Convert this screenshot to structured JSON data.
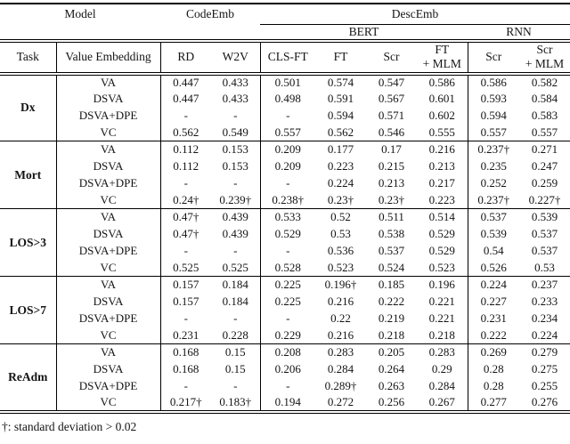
{
  "header": {
    "model": "Model",
    "codeemb": "CodeEmb",
    "descemb": "DescEmb",
    "bert": "BERT",
    "rnn": "RNN",
    "task": "Task",
    "value_embedding": "Value Embedding",
    "cols": {
      "rd": "RD",
      "w2v": "W2V",
      "cls_ft": "CLS-FT",
      "ft": "FT",
      "scr": "Scr",
      "ft_mlm": [
        "FT",
        "+ MLM"
      ],
      "scr_rnn": "Scr",
      "scr_mlm": [
        "Scr",
        "+ MLM"
      ]
    }
  },
  "groups": [
    {
      "task": "Dx",
      "rows": [
        {
          "label": "VA",
          "values": [
            "0.447",
            "0.433",
            "0.501",
            "0.574",
            "0.547",
            "0.586",
            "0.586",
            "0.582"
          ]
        },
        {
          "label": "DSVA",
          "values": [
            "0.447",
            "0.433",
            "0.498",
            "0.591",
            "0.567",
            "0.601",
            "0.593",
            "0.584"
          ]
        },
        {
          "label": "DSVA+DPE",
          "values": [
            "-",
            "-",
            "-",
            "0.594",
            "0.571",
            "0.602",
            "0.594",
            "0.583"
          ]
        },
        {
          "label": "VC",
          "values": [
            "0.562",
            "0.549",
            "0.557",
            "0.562",
            "0.546",
            "0.555",
            "0.557",
            "0.557"
          ]
        }
      ]
    },
    {
      "task": "Mort",
      "rows": [
        {
          "label": "VA",
          "values": [
            "0.112",
            "0.153",
            "0.209",
            "0.177",
            "0.17",
            "0.216",
            "0.237†",
            "0.271"
          ]
        },
        {
          "label": "DSVA",
          "values": [
            "0.112",
            "0.153",
            "0.209",
            "0.223",
            "0.215",
            "0.213",
            "0.235",
            "0.247"
          ]
        },
        {
          "label": "DSVA+DPE",
          "values": [
            "-",
            "-",
            "-",
            "0.224",
            "0.213",
            "0.217",
            "0.252",
            "0.259"
          ]
        },
        {
          "label": "VC",
          "values": [
            "0.24†",
            "0.239†",
            "0.238†",
            "0.23†",
            "0.23†",
            "0.223",
            "0.237†",
            "0.227†"
          ]
        }
      ]
    },
    {
      "task": "LOS>3",
      "rows": [
        {
          "label": "VA",
          "values": [
            "0.47†",
            "0.439",
            "0.533",
            "0.52",
            "0.511",
            "0.514",
            "0.537",
            "0.539"
          ]
        },
        {
          "label": "DSVA",
          "values": [
            "0.47†",
            "0.439",
            "0.529",
            "0.53",
            "0.538",
            "0.529",
            "0.539",
            "0.537"
          ]
        },
        {
          "label": "DSVA+DPE",
          "values": [
            "-",
            "-",
            "-",
            "0.536",
            "0.537",
            "0.529",
            "0.54",
            "0.537"
          ]
        },
        {
          "label": "VC",
          "values": [
            "0.525",
            "0.525",
            "0.528",
            "0.523",
            "0.524",
            "0.523",
            "0.526",
            "0.53"
          ]
        }
      ]
    },
    {
      "task": "LOS>7",
      "rows": [
        {
          "label": "VA",
          "values": [
            "0.157",
            "0.184",
            "0.225",
            "0.196†",
            "0.185",
            "0.196",
            "0.224",
            "0.237"
          ]
        },
        {
          "label": "DSVA",
          "values": [
            "0.157",
            "0.184",
            "0.225",
            "0.216",
            "0.222",
            "0.221",
            "0.227",
            "0.233"
          ]
        },
        {
          "label": "DSVA+DPE",
          "values": [
            "-",
            "-",
            "-",
            "0.22",
            "0.219",
            "0.221",
            "0.231",
            "0.234"
          ]
        },
        {
          "label": "VC",
          "values": [
            "0.231",
            "0.228",
            "0.229",
            "0.216",
            "0.218",
            "0.218",
            "0.222",
            "0.224"
          ]
        }
      ]
    },
    {
      "task": "ReAdm",
      "rows": [
        {
          "label": "VA",
          "values": [
            "0.168",
            "0.15",
            "0.208",
            "0.283",
            "0.205",
            "0.283",
            "0.269",
            "0.279"
          ]
        },
        {
          "label": "DSVA",
          "values": [
            "0.168",
            "0.15",
            "0.206",
            "0.284",
            "0.264",
            "0.29",
            "0.28",
            "0.275"
          ]
        },
        {
          "label": "DSVA+DPE",
          "values": [
            "-",
            "-",
            "-",
            "0.289†",
            "0.263",
            "0.284",
            "0.28",
            "0.255"
          ]
        },
        {
          "label": "VC",
          "values": [
            "0.217†",
            "0.183†",
            "0.194",
            "0.272",
            "0.256",
            "0.267",
            "0.277",
            "0.276"
          ]
        }
      ]
    }
  ],
  "footnote": "†: standard deviation > 0.02"
}
